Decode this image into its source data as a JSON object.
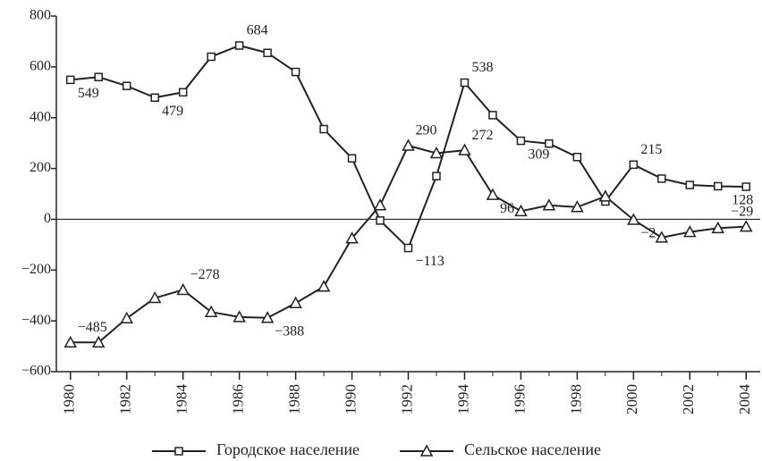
{
  "chart_data": {
    "type": "line",
    "x": [
      1980,
      1981,
      1982,
      1983,
      1984,
      1985,
      1986,
      1987,
      1988,
      1989,
      1990,
      1991,
      1992,
      1993,
      1994,
      1995,
      1996,
      1997,
      1998,
      1999,
      2000,
      2001,
      2002,
      2003,
      2004
    ],
    "series": [
      {
        "name": "Городское население",
        "color": "#222222",
        "marker": "square",
        "values": [
          549,
          560,
          525,
          479,
          500,
          640,
          684,
          655,
          580,
          355,
          240,
          -5,
          -113,
          170,
          538,
          410,
          309,
          298,
          245,
          70,
          215,
          160,
          135,
          130,
          128
        ],
        "value_labels": [
          "549",
          null,
          null,
          "479",
          null,
          null,
          "684",
          null,
          null,
          null,
          null,
          null,
          "−113",
          null,
          "538",
          null,
          "309",
          null,
          null,
          null,
          "215",
          null,
          null,
          null,
          "128"
        ]
      },
      {
        "name": "Сельское население",
        "color": "#222222",
        "marker": "triangle",
        "values": [
          -485,
          -485,
          -390,
          -310,
          -278,
          -365,
          -385,
          -388,
          -330,
          -265,
          -75,
          55,
          290,
          260,
          272,
          96,
          32,
          55,
          48,
          90,
          -2,
          -72,
          -50,
          -35,
          -29
        ],
        "value_labels": [
          "−485",
          null,
          null,
          null,
          "−278",
          null,
          null,
          "−388",
          null,
          null,
          null,
          null,
          "290",
          null,
          "272",
          "96",
          null,
          null,
          null,
          null,
          "−2",
          null,
          null,
          null,
          "−29"
        ]
      }
    ],
    "xlim": [
      1979.5,
      2004.5
    ],
    "xticks": [
      1980,
      1982,
      1984,
      1986,
      1988,
      1990,
      1992,
      1994,
      1996,
      1998,
      2000,
      2002,
      2004
    ],
    "ylim": [
      -600,
      800
    ],
    "yticks": [
      {
        "value": -600,
        "label": "−600"
      },
      {
        "value": -400,
        "label": "−400"
      },
      {
        "value": -200,
        "label": "−200"
      },
      0,
      200,
      400,
      600,
      800
    ],
    "zero_line": true,
    "legend": "bottom"
  }
}
